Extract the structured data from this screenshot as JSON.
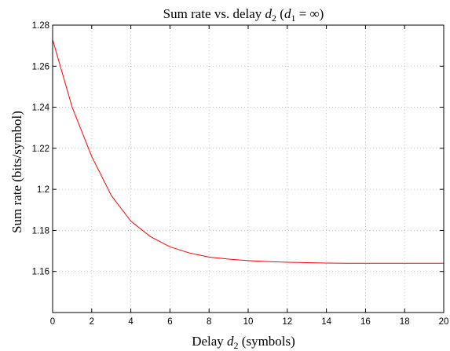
{
  "chart_data": {
    "type": "line",
    "title": {
      "prefix": "Sum rate vs. delay ",
      "var": "d",
      "var_sub": "2",
      "paren_open": " (",
      "cond_var": "d",
      "cond_sub": "1",
      "cond_rest": " = ∞)"
    },
    "xlabel": {
      "prefix": "Delay ",
      "var": "d",
      "var_sub": "2",
      "suffix": " (symbols)"
    },
    "ylabel": "Sum rate (bits/symbol)",
    "xlim": [
      0,
      20
    ],
    "ylim": [
      1.14,
      1.28
    ],
    "xticks": [
      0,
      2,
      4,
      6,
      8,
      10,
      12,
      14,
      16,
      18,
      20
    ],
    "yticks": [
      1.16,
      1.18,
      1.2,
      1.22,
      1.24,
      1.26,
      1.28
    ],
    "xtick_labels": [
      "0",
      "2",
      "4",
      "6",
      "8",
      "10",
      "12",
      "14",
      "16",
      "18",
      "20"
    ],
    "ytick_labels": [
      "1.16",
      "1.18",
      "1.2",
      "1.22",
      "1.24",
      "1.26",
      "1.28"
    ],
    "grid": true,
    "series": [
      {
        "color": "#ff0000",
        "x": [
          0,
          1,
          2,
          3,
          4,
          5,
          6,
          7,
          8,
          9,
          10,
          11,
          12,
          13,
          14,
          15,
          16,
          17,
          18,
          19,
          20
        ],
        "y": [
          1.273,
          1.24,
          1.216,
          1.197,
          1.1845,
          1.177,
          1.172,
          1.169,
          1.167,
          1.166,
          1.1653,
          1.1648,
          1.1645,
          1.1643,
          1.1641,
          1.164,
          1.164,
          1.164,
          1.164,
          1.164,
          1.164
        ]
      }
    ]
  }
}
